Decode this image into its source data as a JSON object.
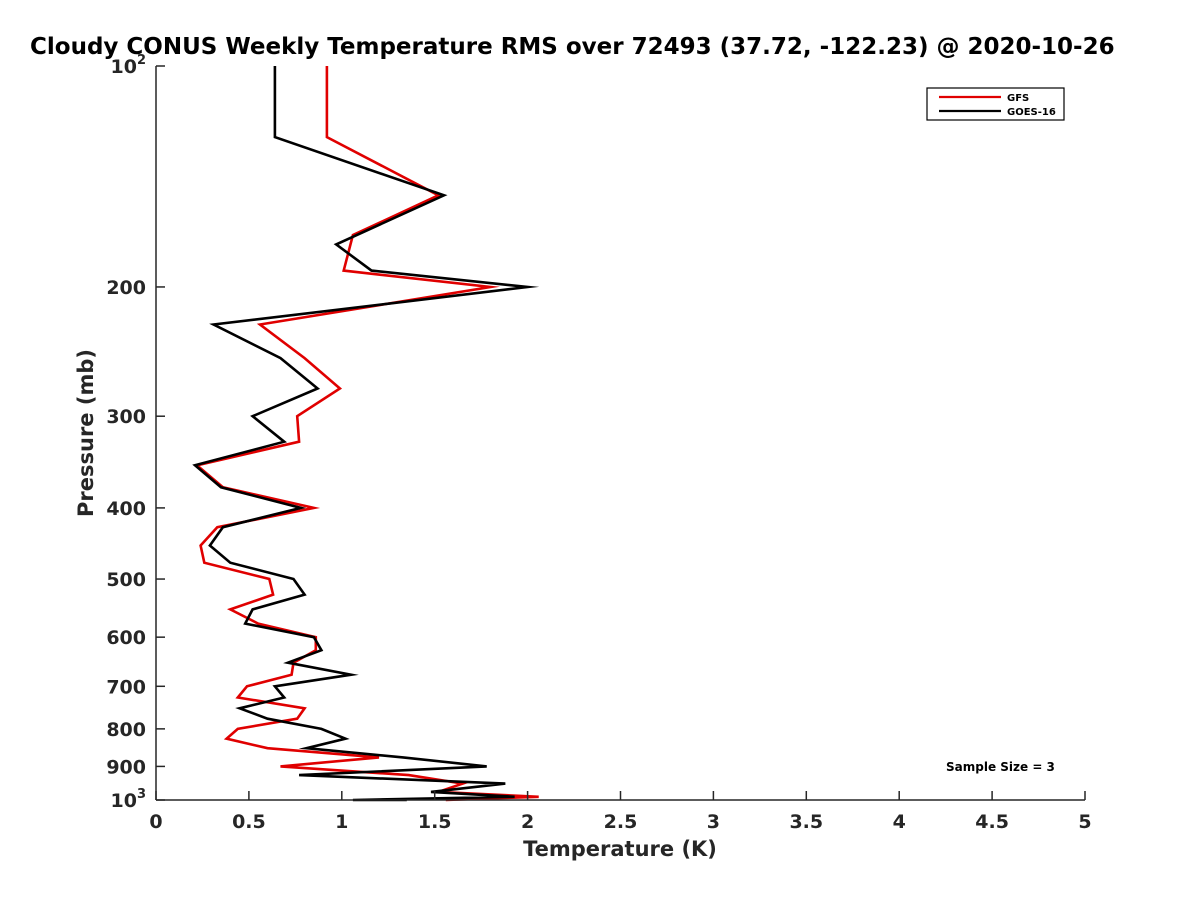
{
  "chart_data": {
    "type": "line",
    "title": "Cloudy CONUS Weekly Temperature RMS over 72493 (37.72, -122.23) @ 2020-10-26",
    "xlabel": "Temperature (K)",
    "ylabel": "Pressure (mb)",
    "xlim": [
      0,
      5
    ],
    "ylim": [
      100,
      1000
    ],
    "yscale": "log",
    "y_reversed": true,
    "grid": false,
    "legend_position": "top-right",
    "x_ticks": [
      "0",
      "0.5",
      "1",
      "1.5",
      "2",
      "2.5",
      "3",
      "3.5",
      "4",
      "4.5",
      "5"
    ],
    "y_ticks": [
      {
        "value": 100,
        "base": "10",
        "exp": "2"
      },
      {
        "value": 200,
        "label": "200"
      },
      {
        "value": 300,
        "label": "300"
      },
      {
        "value": 400,
        "label": "400"
      },
      {
        "value": 500,
        "label": "500"
      },
      {
        "value": 600,
        "label": "600"
      },
      {
        "value": 700,
        "label": "700"
      },
      {
        "value": 800,
        "label": "800"
      },
      {
        "value": 900,
        "label": "900"
      },
      {
        "value": 1000,
        "base": "10",
        "exp": "3"
      }
    ],
    "series": [
      {
        "name": "GFS",
        "color": "#e00000",
        "points": [
          [
            0.92,
            100
          ],
          [
            0.92,
            125
          ],
          [
            1.52,
            150
          ],
          [
            1.06,
            170
          ],
          [
            1.01,
            190
          ],
          [
            1.8,
            200
          ],
          [
            0.56,
            225
          ],
          [
            0.8,
            250
          ],
          [
            0.99,
            275
          ],
          [
            0.76,
            300
          ],
          [
            0.77,
            325
          ],
          [
            0.22,
            350
          ],
          [
            0.36,
            375
          ],
          [
            0.85,
            400
          ],
          [
            0.33,
            425
          ],
          [
            0.24,
            450
          ],
          [
            0.26,
            475
          ],
          [
            0.61,
            500
          ],
          [
            0.63,
            525
          ],
          [
            0.4,
            550
          ],
          [
            0.55,
            575
          ],
          [
            0.86,
            600
          ],
          [
            0.86,
            625
          ],
          [
            0.74,
            650
          ],
          [
            0.73,
            675
          ],
          [
            0.49,
            700
          ],
          [
            0.44,
            725
          ],
          [
            0.8,
            750
          ],
          [
            0.76,
            775
          ],
          [
            0.44,
            800
          ],
          [
            0.38,
            825
          ],
          [
            0.6,
            850
          ],
          [
            1.2,
            875
          ],
          [
            0.67,
            900
          ],
          [
            1.36,
            925
          ],
          [
            1.65,
            950
          ],
          [
            1.52,
            975
          ],
          [
            2.06,
            990
          ],
          [
            1.56,
            1000
          ]
        ]
      },
      {
        "name": "GOES-16",
        "color": "#000000",
        "points": [
          [
            0.64,
            100
          ],
          [
            0.64,
            125
          ],
          [
            1.55,
            150
          ],
          [
            0.97,
            175
          ],
          [
            1.16,
            190
          ],
          [
            2.0,
            200
          ],
          [
            0.31,
            225
          ],
          [
            0.67,
            250
          ],
          [
            0.87,
            275
          ],
          [
            0.52,
            300
          ],
          [
            0.69,
            325
          ],
          [
            0.21,
            350
          ],
          [
            0.35,
            375
          ],
          [
            0.78,
            400
          ],
          [
            0.36,
            425
          ],
          [
            0.29,
            450
          ],
          [
            0.4,
            475
          ],
          [
            0.74,
            500
          ],
          [
            0.8,
            525
          ],
          [
            0.52,
            550
          ],
          [
            0.48,
            575
          ],
          [
            0.85,
            600
          ],
          [
            0.89,
            625
          ],
          [
            0.71,
            650
          ],
          [
            1.05,
            675
          ],
          [
            0.64,
            700
          ],
          [
            0.69,
            725
          ],
          [
            0.45,
            750
          ],
          [
            0.6,
            775
          ],
          [
            0.89,
            800
          ],
          [
            1.02,
            825
          ],
          [
            0.81,
            850
          ],
          [
            1.33,
            875
          ],
          [
            1.78,
            900
          ],
          [
            0.77,
            925
          ],
          [
            1.88,
            950
          ],
          [
            1.48,
            975
          ],
          [
            1.93,
            990
          ],
          [
            1.06,
            1000
          ],
          [
            1.35,
            1000
          ]
        ]
      }
    ],
    "annotations": [
      "Sample Size = 3"
    ]
  }
}
